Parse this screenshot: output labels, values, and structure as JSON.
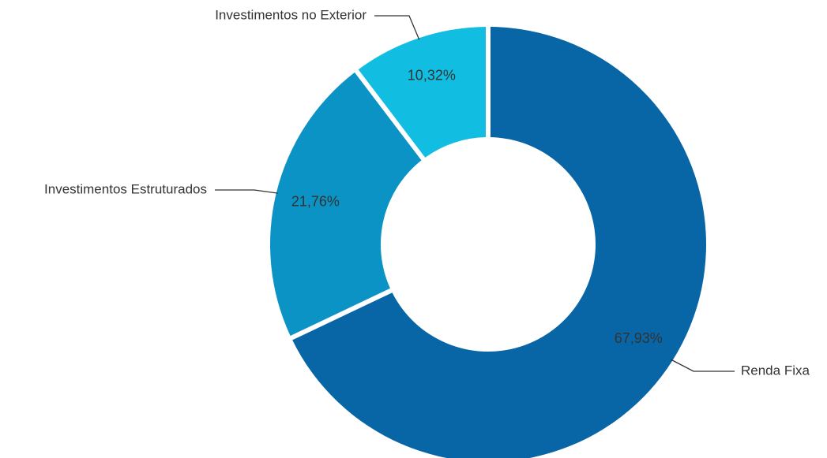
{
  "chart_data": {
    "type": "pie",
    "variant": "donut",
    "title": "",
    "legend": "none",
    "series": [
      {
        "values": [
          67.93,
          21.76,
          10.32
        ],
        "value_labels": [
          "67,93%",
          "21,76%",
          "10,32%"
        ],
        "categories": [
          "Renda Fixa",
          "Investimentos Estruturados",
          "Investimentos no Exterior"
        ],
        "colors": [
          "#0866a6",
          "#0b93c5",
          "#12bde2"
        ]
      }
    ]
  }
}
